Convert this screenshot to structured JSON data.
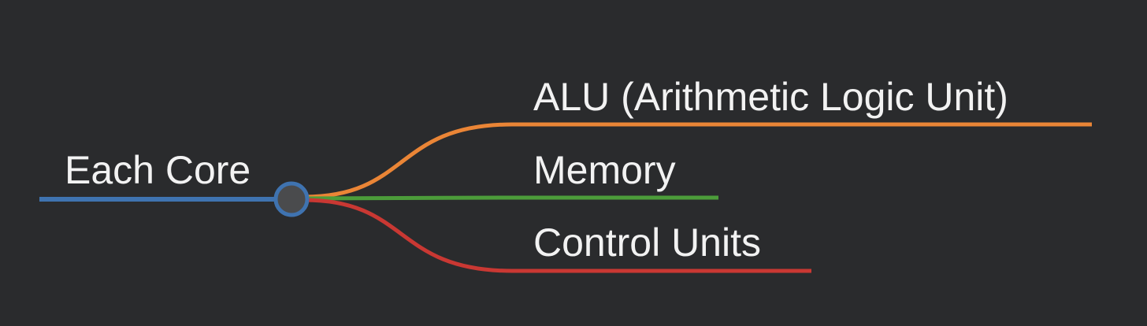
{
  "mindmap": {
    "root": {
      "label": "Each Core",
      "color": "#3f73b0"
    },
    "branches": [
      {
        "label": "ALU (Arithmetic Logic Unit)",
        "color": "#ea8536"
      },
      {
        "label": "Memory",
        "color": "#4c9c3a"
      },
      {
        "label": "Control Units",
        "color": "#c93833"
      }
    ],
    "colors": {
      "background": "#2a2b2d",
      "hub_fill": "#4a4b4d",
      "text": "#f2f2f2"
    }
  }
}
